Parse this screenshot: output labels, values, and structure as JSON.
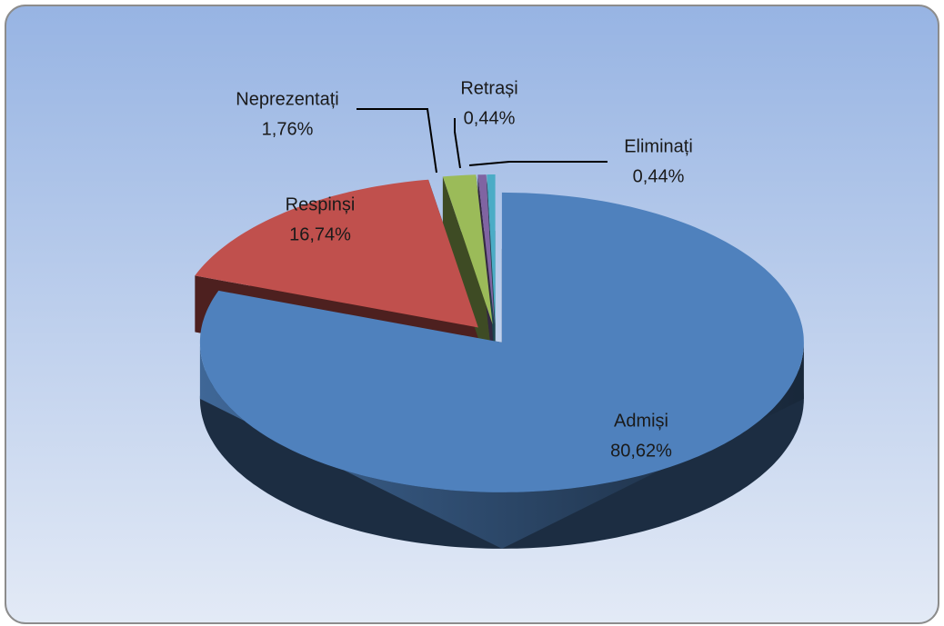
{
  "chart_data": {
    "type": "pie",
    "categories": [
      "Admiși",
      "Respinși",
      "Neprezentați",
      "Retrași",
      "Eliminați"
    ],
    "values": [
      80.62,
      16.74,
      1.76,
      0.44,
      0.44
    ],
    "value_labels": [
      "80,62%",
      "16,74%",
      "1,76%",
      "0,44%",
      "0,44%"
    ],
    "colors": [
      "#4f81bd",
      "#c0504d",
      "#9bbb59",
      "#8064a2",
      "#4bacc6"
    ],
    "three_d": true,
    "exploded": true
  }
}
